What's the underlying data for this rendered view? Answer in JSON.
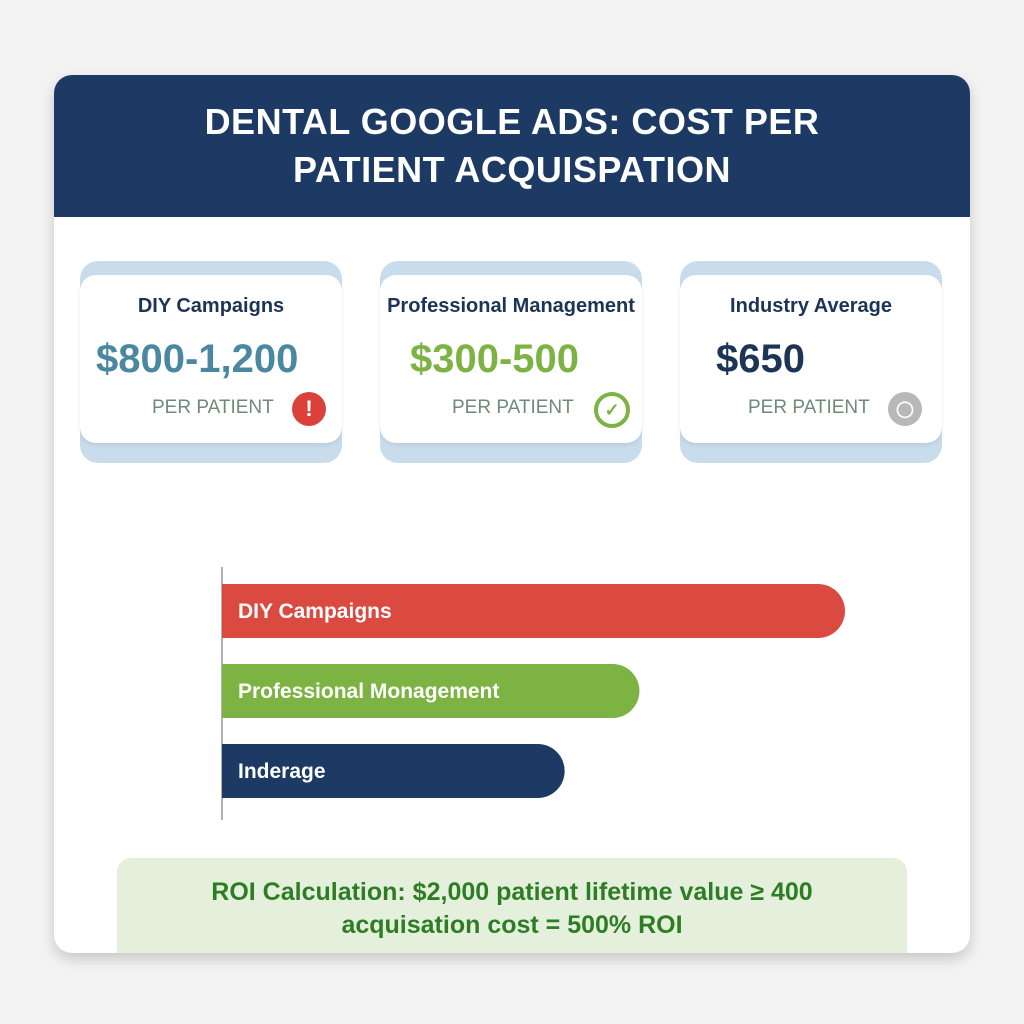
{
  "header": {
    "title": "DENTAL GOOGLE ADS: COST PER PATIENT ACQUISPATION"
  },
  "cards": [
    {
      "title": "DIY Campaigns",
      "value": "$800-1,200",
      "unit": "PER PATIENT",
      "icon": "exclamation-icon",
      "color": "#4a87a0",
      "icon_color": "#d9413a"
    },
    {
      "title": "Professional Management",
      "value": "$300-500",
      "unit": "PER PATIENT",
      "icon": "check-circle-icon",
      "color": "#7cb342",
      "icon_color": "#7cb342"
    },
    {
      "title": "Industry Average",
      "value": "$650",
      "unit": "PER PATIENT",
      "icon": "chat-bubble-icon",
      "color": "#1c3455",
      "icon_color": "#b8b8b8"
    }
  ],
  "chart_data": {
    "type": "bar",
    "orientation": "horizontal",
    "categories": [
      "DIY Campaigns",
      "Professional Monagement",
      "Inderage"
    ],
    "values": [
      100,
      67,
      55
    ],
    "value_note": "relative bar lengths, no axis printed",
    "colors": [
      "#db4a40",
      "#7cb342",
      "#1c3a63"
    ],
    "grid": false
  },
  "roi": {
    "text": "ROI Calculation: $2,000 patient lifetime value ≥ 400 acquisation cost = 500% ROI"
  }
}
